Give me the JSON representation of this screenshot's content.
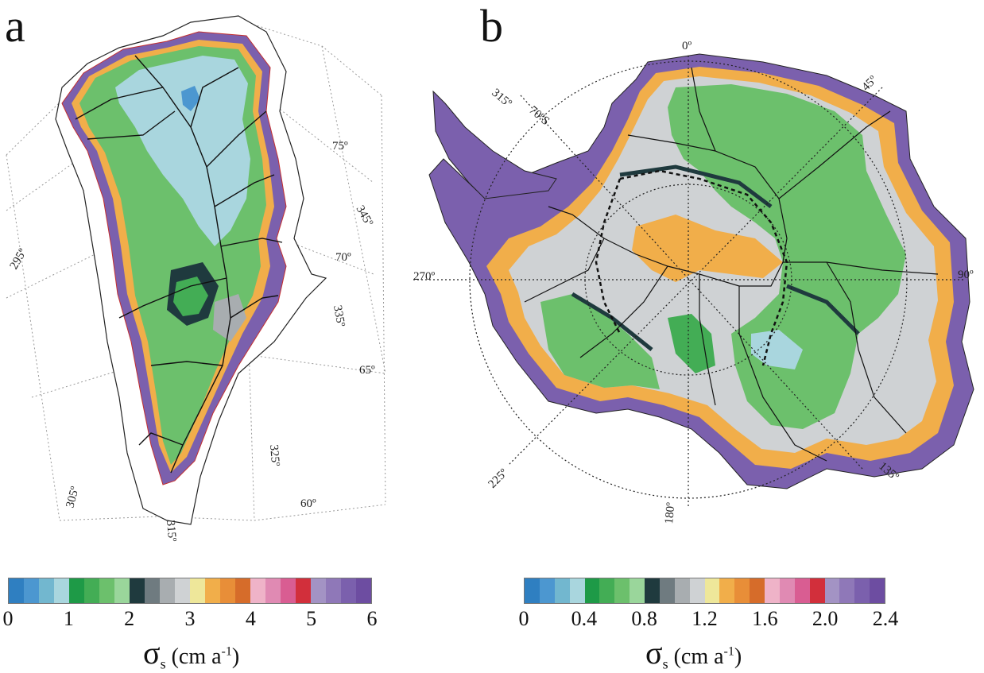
{
  "panels": {
    "a": {
      "letter": "a",
      "title": {
        "symbol": "σ",
        "sub": "s",
        "unit_pre": "(cm a",
        "unit_sup": "-1",
        "unit_post": ")"
      },
      "ticks": [
        "0",
        "1",
        "2",
        "3",
        "4",
        "5",
        "6"
      ],
      "graticule": [
        "75º",
        "345º",
        "70º",
        "295º",
        "335º",
        "65º",
        "325º",
        "305º",
        "60º",
        "315º"
      ]
    },
    "b": {
      "letter": "b",
      "title": {
        "symbol": "σ",
        "sub": "s",
        "unit_pre": "(cm a",
        "unit_sup": "-1",
        "unit_post": ")"
      },
      "ticks": [
        "0",
        "0.4",
        "0.8",
        "1.2",
        "1.6",
        "2.0",
        "2.4"
      ],
      "graticule": [
        "0º",
        "45º",
        "315º",
        "70ºS",
        "270º",
        "90º",
        "225º",
        "180º",
        "135º"
      ]
    }
  },
  "colorbar": [
    "#2f7fc1",
    "#4c97d0",
    "#72b7cf",
    "#a9d6de",
    "#1e9a47",
    "#43ad55",
    "#6cc06c",
    "#9ad69b",
    "#1f3a3e",
    "#6f7b80",
    "#a8adb0",
    "#cfd2d4",
    "#eee79a",
    "#f1ae4a",
    "#e88e38",
    "#d66c2a",
    "#efb3c8",
    "#e08ab3",
    "#d95d92",
    "#d22f3b",
    "#a393c4",
    "#8f78b8",
    "#7b60ad",
    "#6d4da1"
  ]
}
